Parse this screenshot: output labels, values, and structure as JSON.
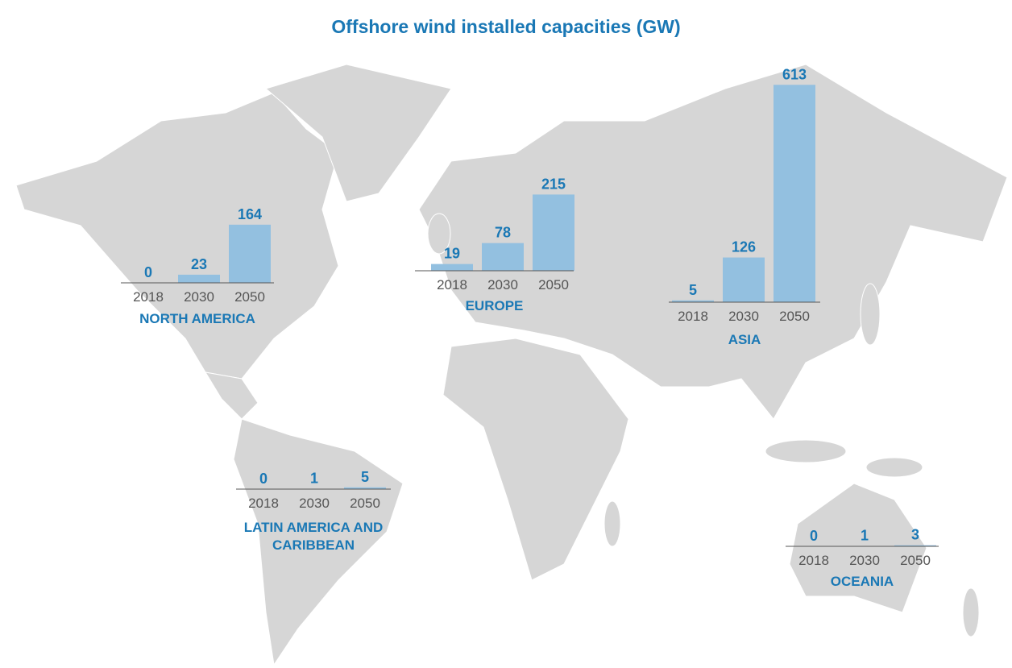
{
  "title": "Offshore wind installed capacities (GW)",
  "chart_data": [
    {
      "type": "bar",
      "title": "NORTH AMERICA",
      "categories": [
        "2018",
        "2030",
        "2050"
      ],
      "values": [
        0,
        23,
        164
      ],
      "color": "#93c0e0"
    },
    {
      "type": "bar",
      "title": "EUROPE",
      "categories": [
        "2018",
        "2030",
        "2050"
      ],
      "values": [
        19,
        78,
        215
      ],
      "color": "#93c0e0"
    },
    {
      "type": "bar",
      "title": "ASIA",
      "categories": [
        "2018",
        "2030",
        "2050"
      ],
      "values": [
        5,
        126,
        613
      ],
      "color": "#93c0e0"
    },
    {
      "type": "bar",
      "title": "LATIN AMERICA AND CARIBBEAN",
      "categories": [
        "2018",
        "2030",
        "2050"
      ],
      "values": [
        0,
        1,
        5
      ],
      "color": "#93c0e0"
    },
    {
      "type": "bar",
      "title": "OCEANIA",
      "categories": [
        "2018",
        "2030",
        "2050"
      ],
      "values": [
        0,
        1,
        3
      ],
      "color": "#93c0e0"
    }
  ]
}
